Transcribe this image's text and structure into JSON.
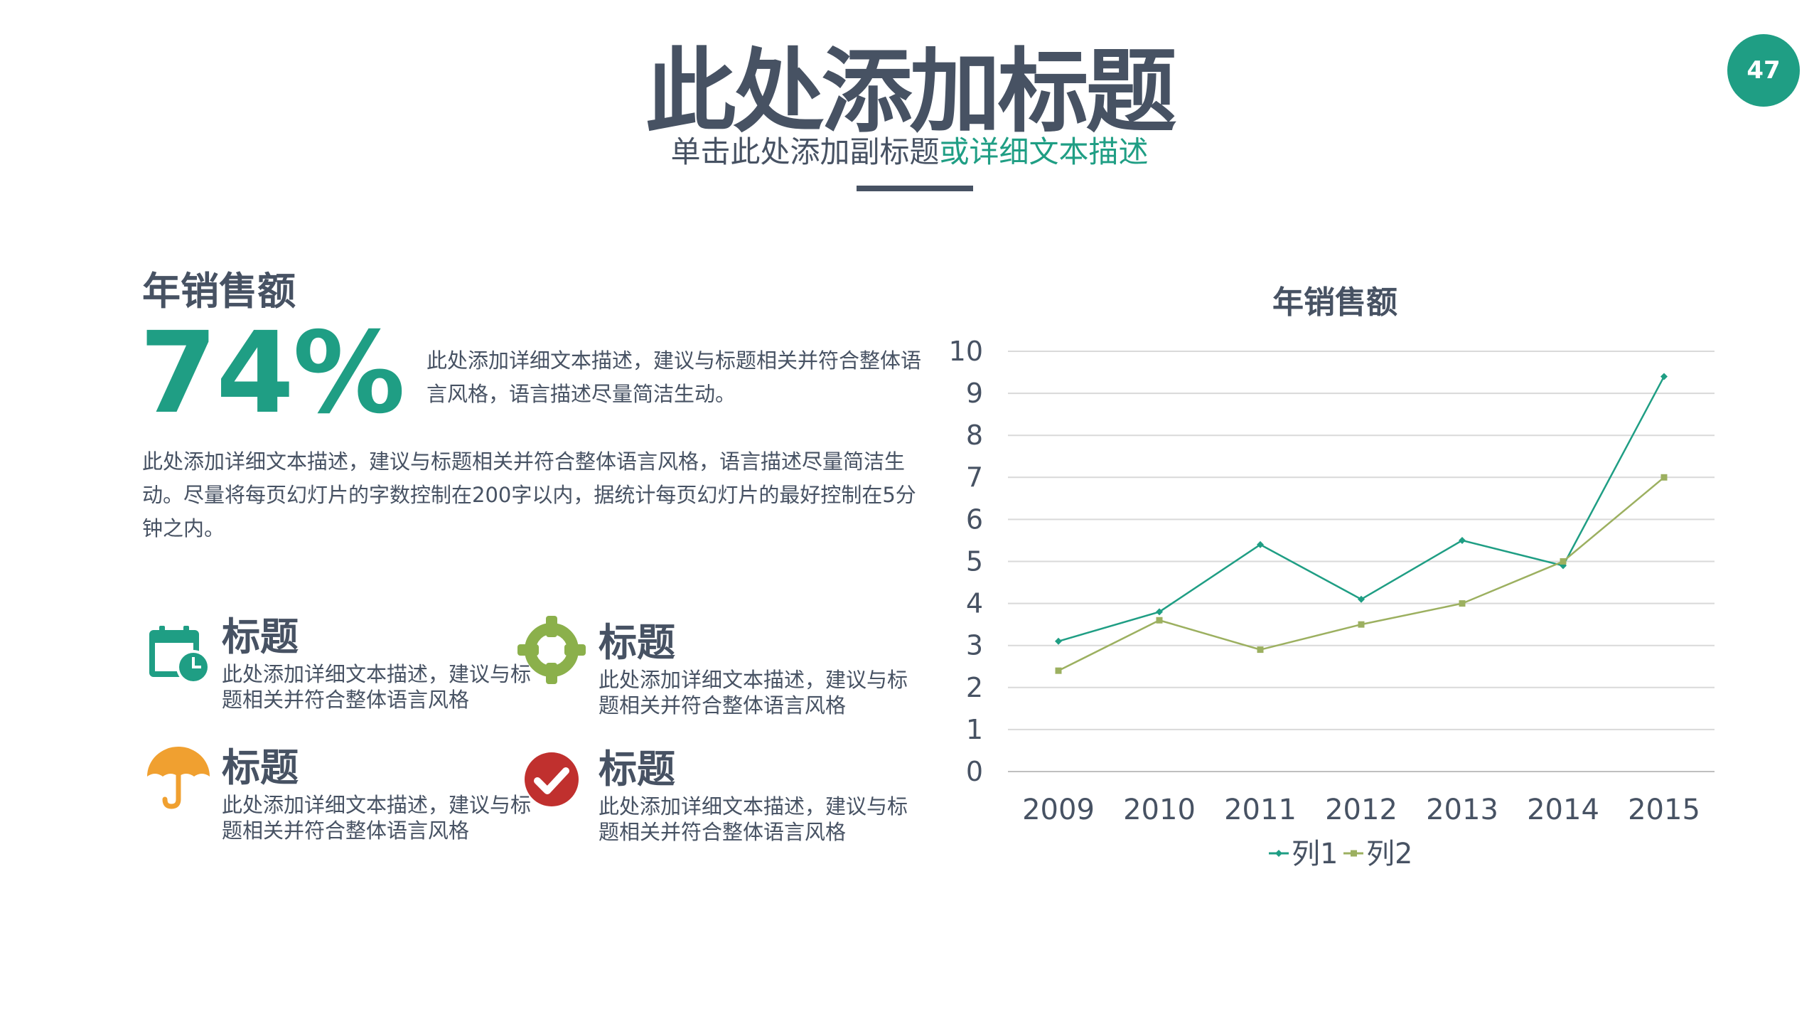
{
  "page_number": "47",
  "title": "此处添加标题",
  "subtitle": {
    "part1": "单击此处添加副标题",
    "part2": "或详细文本描述"
  },
  "section": {
    "heading": "年销售额",
    "percent": "74%",
    "percent_desc": "此处添加详细文本描述，建议与标题相关并符合整体语言风格，语言描述尽量简洁生动。",
    "paragraph": "此处添加详细文本描述，建议与标题相关并符合整体语言风格，语言描述尽量简洁生动。尽量将每页幻灯片的字数控制在200字以内，据统计每页幻灯片的最好控制在5分钟之内。"
  },
  "features": [
    {
      "icon": "calendar-clock-icon",
      "color": "#1f9e84",
      "title": "标题",
      "desc": "此处添加详细文本描述，建议与标题相关并符合整体语言风格"
    },
    {
      "icon": "crosshair-icon",
      "color": "#8bb04b",
      "title": "标题",
      "desc": "此处添加详细文本描述，建议与标题相关并符合整体语言风格"
    },
    {
      "icon": "umbrella-icon",
      "color": "#f0a030",
      "title": "标题",
      "desc": "此处添加详细文本描述，建议与标题相关并符合整体语言风格"
    },
    {
      "icon": "checkmark-circle-icon",
      "color": "#c0302e",
      "title": "标题",
      "desc": "此处添加详细文本描述，建议与标题相关并符合整体语言风格"
    }
  ],
  "chart_data": {
    "type": "line",
    "title": "年销售额",
    "categories": [
      "2009",
      "2010",
      "2011",
      "2012",
      "2013",
      "2014",
      "2015"
    ],
    "series": [
      {
        "name": "列1",
        "color": "#1f9e84",
        "values": [
          3.1,
          3.8,
          5.4,
          4.1,
          5.5,
          4.9,
          9.4
        ]
      },
      {
        "name": "列2",
        "color": "#9cb060",
        "values": [
          2.4,
          3.6,
          2.9,
          3.5,
          4.0,
          5.0,
          7.0
        ]
      }
    ],
    "ylim": [
      0,
      10
    ],
    "yticks": [
      "0",
      "1",
      "2",
      "3",
      "4",
      "5",
      "6",
      "7",
      "8",
      "9",
      "10"
    ],
    "grid": true,
    "legend": "bottom"
  }
}
